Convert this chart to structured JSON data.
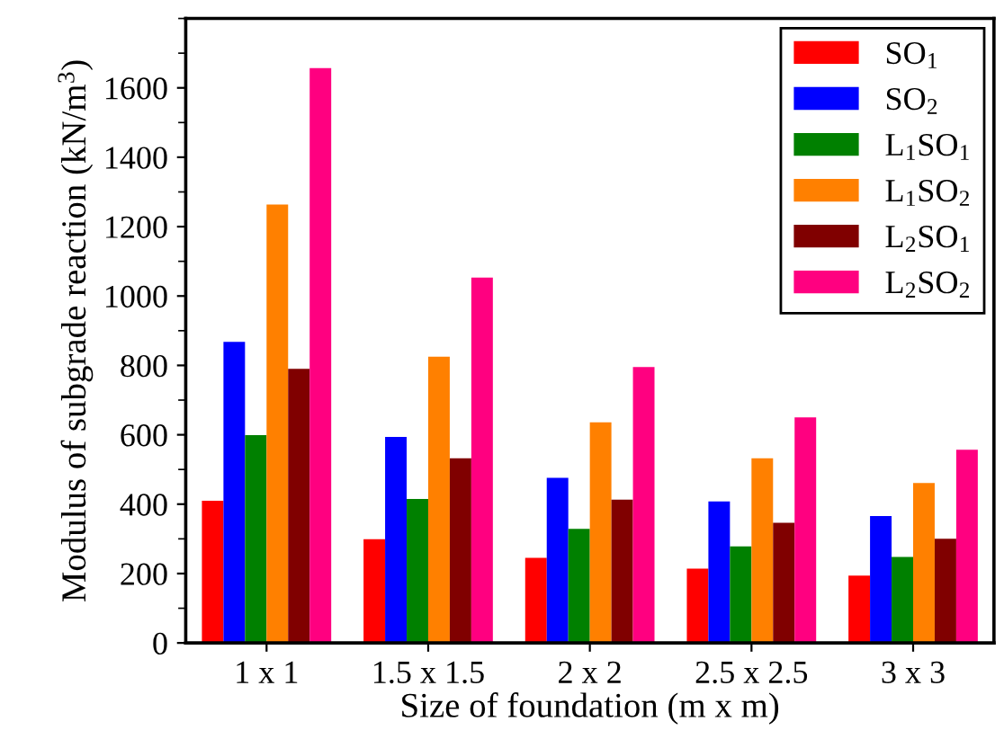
{
  "chart_data": {
    "type": "bar",
    "xlabel": "Size of foundation (m x m)",
    "ylabel": "Modulus of subgrade reaction (kN/m$^{3}$)",
    "categories": [
      "1 x 1",
      "1.5 x 1.5",
      "2 x 2",
      "2.5 x 2.5",
      "3 x 3"
    ],
    "series": [
      {
        "name": "SO$_{1}$",
        "color": "#ff0000",
        "values": [
          410,
          299,
          245,
          214,
          194
        ]
      },
      {
        "name": "SO$_{2}$",
        "color": "#0000ff",
        "values": [
          868,
          594,
          476,
          408,
          366
        ]
      },
      {
        "name": "L$_{1}$SO$_{1}$",
        "color": "#008000",
        "values": [
          599,
          415,
          329,
          278,
          248
        ]
      },
      {
        "name": "L$_{1}$SO$_{2}$",
        "color": "#ff8000",
        "values": [
          1264,
          825,
          636,
          532,
          461
        ]
      },
      {
        "name": "L$_{2}$SO$_{1}$",
        "color": "#800000",
        "values": [
          790,
          532,
          413,
          346,
          300
        ]
      },
      {
        "name": "L$_{2}$SO$_{2}$",
        "color": "#ff0080",
        "values": [
          1657,
          1053,
          795,
          650,
          557
        ]
      }
    ],
    "ylim": [
      0,
      1800
    ],
    "yticks": [
      0,
      200,
      400,
      600,
      800,
      1000,
      1200,
      1400,
      1600
    ],
    "grid": false,
    "legend": "top right"
  }
}
